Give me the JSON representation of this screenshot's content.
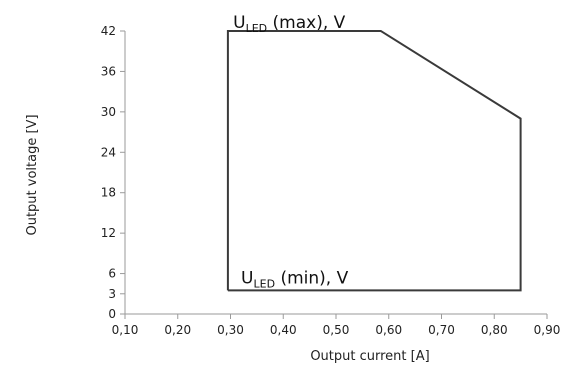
{
  "chart_data": {
    "type": "line",
    "xlabel": "Output current [A]",
    "ylabel": "Output voltage [V]",
    "xlim": [
      0.1,
      0.9
    ],
    "ylim": [
      0,
      42
    ],
    "x_ticks": [
      0.1,
      0.2,
      0.3,
      0.4,
      0.5,
      0.6,
      0.7,
      0.8,
      0.9
    ],
    "x_tick_labels": [
      "0,10",
      "0,20",
      "0,30",
      "0,40",
      "0,50",
      "0,60",
      "0,70",
      "0,80",
      "0,90"
    ],
    "y_ticks": [
      0,
      3,
      6,
      12,
      18,
      24,
      30,
      36,
      42
    ],
    "y_tick_labels": [
      "0",
      "3",
      "6",
      "12",
      "18",
      "24",
      "30",
      "36",
      "42"
    ],
    "grid": false,
    "series": [
      {
        "x": [
          0.295,
          0.295,
          0.585,
          0.85,
          0.85,
          0.295
        ],
        "y": [
          3.5,
          42,
          42,
          29,
          3.5,
          3.5
        ]
      }
    ],
    "annotations": [
      {
        "main": "U",
        "sub": "LED",
        "rest": " (max), V",
        "x": 0.305,
        "y": 42
      },
      {
        "main": "U",
        "sub": "LED",
        "rest": " (min), V",
        "x": 0.32,
        "y": 3.5
      }
    ],
    "line_color": "#3a3a3a"
  }
}
